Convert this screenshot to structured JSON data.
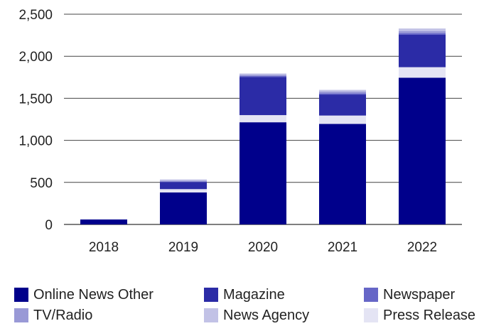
{
  "chart_data": {
    "type": "bar",
    "stacked": true,
    "title": "",
    "xlabel": "",
    "ylabel": "",
    "categories": [
      "2018",
      "2019",
      "2020",
      "2021",
      "2022"
    ],
    "ylim": [
      0,
      2500
    ],
    "yticks": [
      0,
      500,
      1000,
      1500,
      2000,
      2500
    ],
    "ytick_labels": [
      "0",
      "500",
      "1,000",
      "1,500",
      "2,000",
      "2,500"
    ],
    "grid": "horizontal",
    "legend_position": "bottom",
    "series": [
      {
        "name": "Online News Other",
        "color": "#00008b",
        "values": [
          55,
          380,
          1215,
          1195,
          1745
        ]
      },
      {
        "name": "Press Release",
        "color": "#e4e4f4",
        "values": [
          0,
          40,
          85,
          100,
          125
        ]
      },
      {
        "name": "Magazine",
        "color": "#2b2ba6",
        "values": [
          5,
          85,
          455,
          250,
          385
        ]
      },
      {
        "name": "Newspaper",
        "color": "#6666c7",
        "values": [
          0,
          5,
          10,
          15,
          20
        ]
      },
      {
        "name": "TV/Radio",
        "color": "#9999d6",
        "values": [
          0,
          10,
          15,
          20,
          25
        ]
      },
      {
        "name": "News Agency",
        "color": "#c2c2e6",
        "values": [
          0,
          15,
          15,
          20,
          30
        ]
      }
    ]
  },
  "legend": [
    {
      "label": "Online News Other",
      "color": "#00008b"
    },
    {
      "label": "Magazine",
      "color": "#2b2ba6"
    },
    {
      "label": "Newspaper",
      "color": "#6666c7"
    },
    {
      "label": "TV/Radio",
      "color": "#9999d6"
    },
    {
      "label": "News Agency",
      "color": "#c2c2e6"
    },
    {
      "label": "Press Release",
      "color": "#e4e4f4"
    }
  ]
}
